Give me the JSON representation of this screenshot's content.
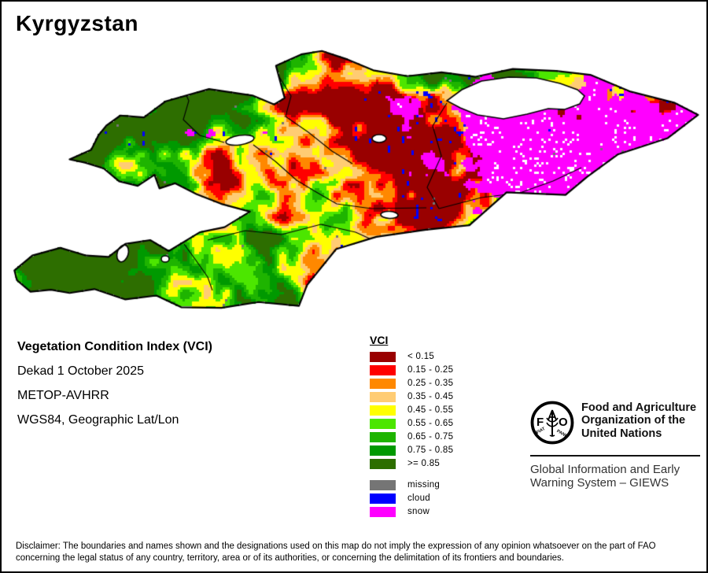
{
  "title": "Kyrgyzstan",
  "info": {
    "product": "Vegetation Condition Index (VCI)",
    "dekad": "Dekad 1 October 2025",
    "sensor": "METOP-AVHRR",
    "projection": "WGS84, Geographic Lat/Lon"
  },
  "legend": {
    "title": "VCI",
    "classes": [
      {
        "label": "< 0.15",
        "color": "#990000"
      },
      {
        "label": "0.15 - 0.25",
        "color": "#ff0000"
      },
      {
        "label": "0.25 - 0.35",
        "color": "#ff8800"
      },
      {
        "label": "0.35 - 0.45",
        "color": "#ffcc73"
      },
      {
        "label": "0.45 - 0.55",
        "color": "#ffff00"
      },
      {
        "label": "0.55 - 0.65",
        "color": "#4ce600"
      },
      {
        "label": "0.65 - 0.75",
        "color": "#1eb400"
      },
      {
        "label": "0.75 - 0.85",
        "color": "#009900"
      },
      {
        "label": ">= 0.85",
        "color": "#2d6e00"
      }
    ],
    "extra": [
      {
        "label": "missing",
        "color": "#757575"
      },
      {
        "label": "cloud",
        "color": "#0000ff"
      },
      {
        "label": "snow",
        "color": "#ff00ff"
      }
    ]
  },
  "fao": {
    "logo": {
      "f": "F",
      "a": "A",
      "o": "O",
      "motto_left": "FIAT",
      "motto_right": "PANIS"
    },
    "org_lines": [
      "Food and Agriculture",
      "Organization of the",
      "United Nations"
    ],
    "giews_lines": [
      "Global Information and Early",
      "Warning System – GIEWS"
    ]
  },
  "disclaimer": {
    "line1": "Disclaimer: The boundaries and names shown and the designations used on this map do not imply the expression of any opinion whatsoever on the part of FAO",
    "line2": "concerning the legal status of any country, territory, area or of its authorities, or concerning the delimitation of its frontiers and boundaries."
  },
  "map": {
    "water_color": "#ffffff",
    "border_color": "#000000",
    "background": "#ffffff"
  }
}
